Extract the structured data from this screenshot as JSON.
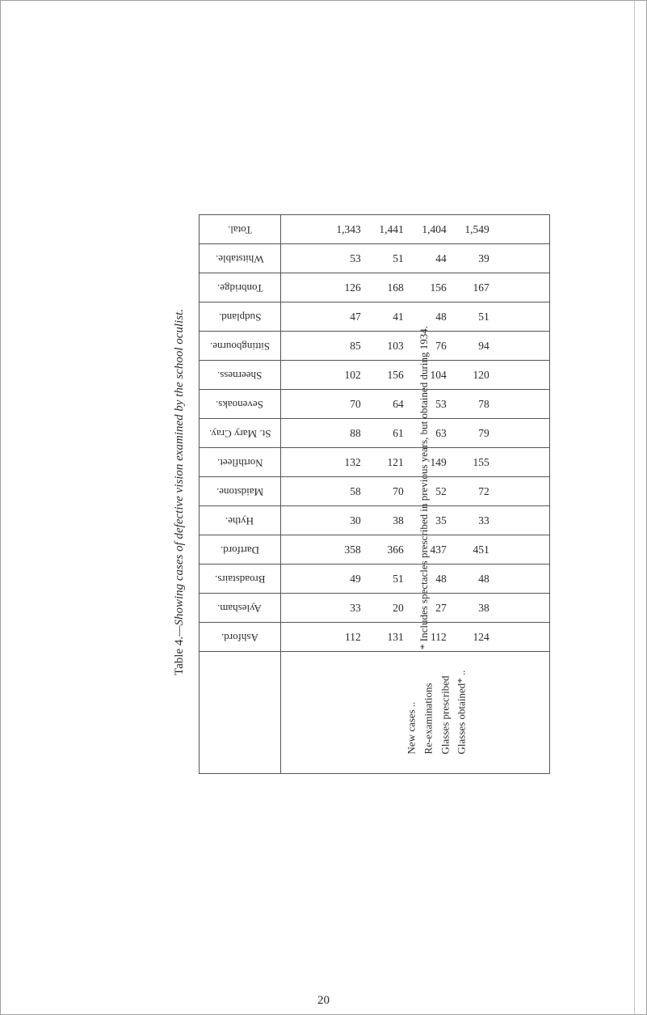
{
  "caption_prefix": "Table 4.",
  "caption_body": "—Showing cases of defective vision examined by the school oculist.",
  "footnote": "* Includes spectacles prescribed in previous years, but obtained during 1934.",
  "page_number": "20",
  "stub_labels": [
    "New cases ..",
    "Re-examinations",
    "Glasses prescribed",
    "Glasses obtained* .."
  ],
  "rows": [
    {
      "label": "Total.",
      "values": [
        "1,343",
        "1,441",
        "1,404",
        "1,549"
      ]
    },
    {
      "label": "Whitstable.",
      "values": [
        "53",
        "51",
        "44",
        "39"
      ]
    },
    {
      "label": "Tonbridge.",
      "values": [
        "126",
        "168",
        "156",
        "167"
      ]
    },
    {
      "label": "Sudpland.",
      "values": [
        "47",
        "41",
        "48",
        "51"
      ]
    },
    {
      "label": "Sittingbourne.",
      "values": [
        "85",
        "103",
        "76",
        "94"
      ]
    },
    {
      "label": "Sheerness.",
      "values": [
        "102",
        "156",
        "104",
        "120"
      ]
    },
    {
      "label": "Sevenoaks.",
      "values": [
        "70",
        "64",
        "53",
        "78"
      ]
    },
    {
      "label": "St. Mary Cray.",
      "values": [
        "88",
        "61",
        "63",
        "79"
      ]
    },
    {
      "label": "Northfleet.",
      "values": [
        "132",
        "121",
        "149",
        "155"
      ]
    },
    {
      "label": "Maidstone.",
      "values": [
        "58",
        "70",
        "52",
        "72"
      ]
    },
    {
      "label": "Hythe.",
      "values": [
        "30",
        "38",
        "35",
        "33"
      ]
    },
    {
      "label": "Dartford.",
      "values": [
        "358",
        "366",
        "437",
        "451"
      ]
    },
    {
      "label": "Broadstairs.",
      "values": [
        "49",
        "51",
        "48",
        "48"
      ]
    },
    {
      "label": "Aylesham.",
      "values": [
        "33",
        "20",
        "27",
        "38"
      ]
    },
    {
      "label": "Ashford.",
      "values": [
        "112",
        "131",
        "112",
        "124"
      ]
    }
  ]
}
